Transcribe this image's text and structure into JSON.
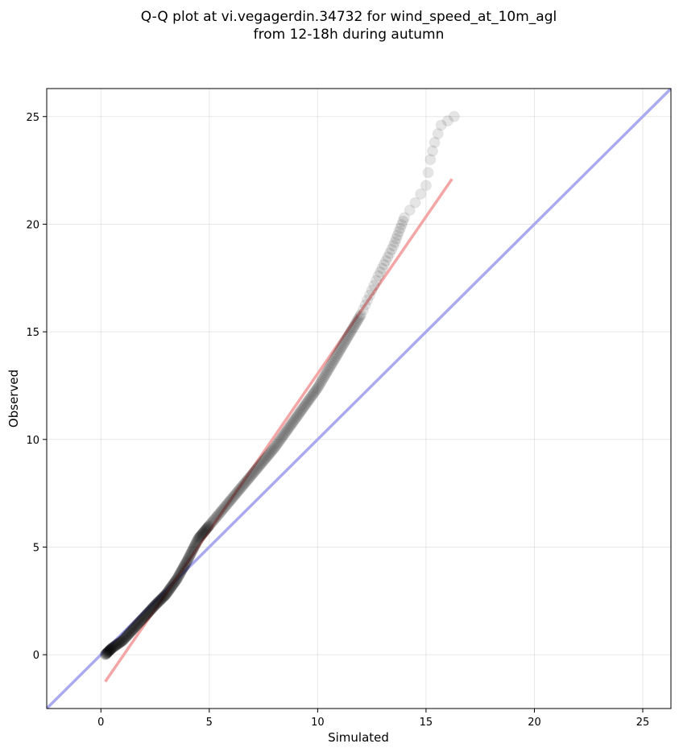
{
  "chart_data": {
    "type": "scatter",
    "title_lines": [
      "Q-Q plot at vi.vegagerdin.34732 for wind_speed_at_10m_agl",
      "from 12-18h during autumn"
    ],
    "xlabel": "Simulated",
    "ylabel": "Observed",
    "xlim": [
      -2.5,
      26.3
    ],
    "ylim": [
      -2.5,
      26.3
    ],
    "xticks": [
      0,
      5,
      10,
      15,
      20,
      25
    ],
    "yticks": [
      0,
      5,
      10,
      15,
      20,
      25
    ],
    "grid": true,
    "quantile_anchors": [
      [
        0.2,
        0.0
      ],
      [
        0.5,
        0.3
      ],
      [
        1.0,
        0.65
      ],
      [
        1.5,
        1.2
      ],
      [
        2.0,
        1.75
      ],
      [
        2.5,
        2.3
      ],
      [
        3.0,
        2.8
      ],
      [
        3.5,
        3.5
      ],
      [
        4.0,
        4.4
      ],
      [
        4.5,
        5.4
      ],
      [
        5.0,
        6.0
      ],
      [
        6.0,
        7.2
      ],
      [
        7.0,
        8.4
      ],
      [
        8.0,
        9.6
      ],
      [
        9.0,
        11.0
      ],
      [
        10.0,
        12.4
      ],
      [
        11.0,
        14.1
      ],
      [
        12.0,
        15.8
      ],
      [
        12.8,
        17.6
      ],
      [
        13.5,
        19.0
      ],
      [
        14.0,
        20.3
      ],
      [
        14.5,
        21.0
      ],
      [
        15.0,
        21.8
      ],
      [
        15.2,
        23.0
      ],
      [
        15.4,
        23.8
      ],
      [
        15.7,
        24.6
      ],
      [
        16.3,
        25.0
      ]
    ],
    "reference_line": {
      "name": "1:1 line",
      "color": "#aaaaf0",
      "from": [
        -2.5,
        -2.5
      ],
      "to": [
        26.3,
        26.3
      ]
    },
    "fit_line": {
      "name": "fit",
      "color": "#f4a6a6",
      "from": [
        0.2,
        -1.25
      ],
      "to": [
        16.2,
        22.1
      ]
    },
    "point_color": "#000000",
    "point_alpha": 0.1
  }
}
